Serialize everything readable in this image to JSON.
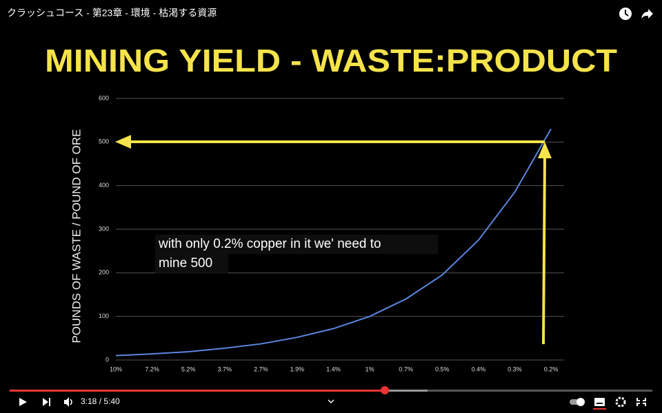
{
  "video_title": "クラッシュコース - 第23章 - 環境 - 枯渇する資源",
  "caption_lines": [
    "with only 0.2% copper in it we' need to",
    "mine 500"
  ],
  "time": "3:18 / 5:40",
  "chart_data": {
    "type": "line",
    "title": "MINING YIELD - WASTE:PRODUCT",
    "y_label": "POUNDS OF WASTE / POUND OF ORE",
    "categories": [
      "10%",
      "7.2%",
      "5.2%",
      "3.7%",
      "2.7%",
      "1.9%",
      "1.4%",
      "1%",
      "0.7%",
      "0.5%",
      "0.4%",
      "0.3%",
      "0.2%"
    ],
    "series": [
      {
        "name": "waste",
        "color": "#5b86e0",
        "values": [
          10,
          14,
          19,
          27,
          37,
          52,
          72,
          100,
          140,
          195,
          275,
          385,
          530
        ]
      }
    ],
    "ylim": [
      0,
      600
    ],
    "yticks": [
      0,
      100,
      200,
      300,
      400,
      500,
      600
    ],
    "grid": true
  }
}
